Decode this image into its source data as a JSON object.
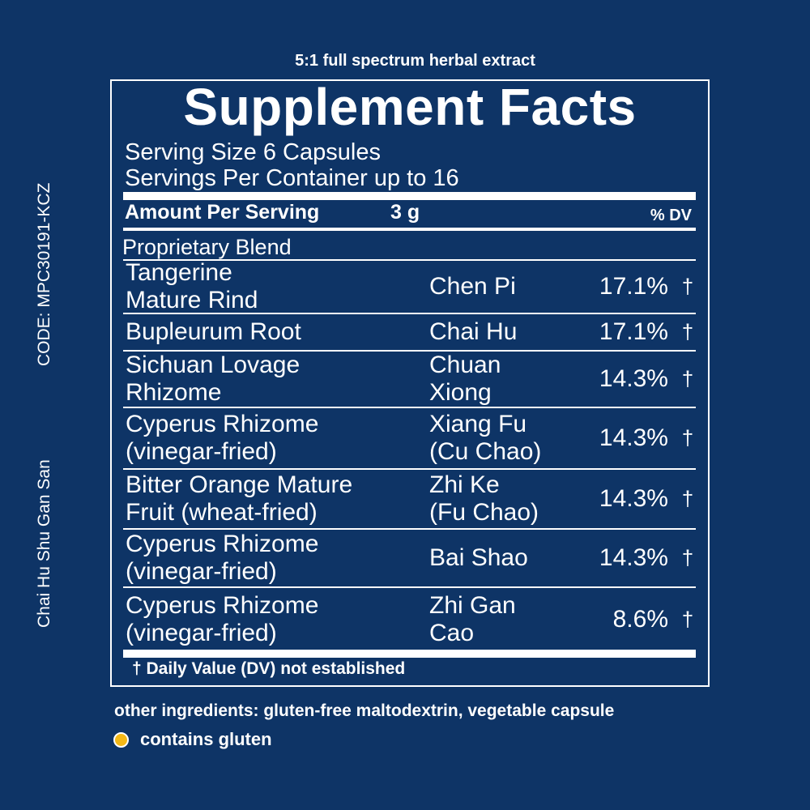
{
  "colors": {
    "background": "#0e3466",
    "text": "#ffffff",
    "gluten_dot": "#f3b817"
  },
  "side": {
    "code": "CODE: MPC30191-KCZ",
    "product_name": "Chai Hu Shu Gan San"
  },
  "extract_note": "5:1 full spectrum herbal extract",
  "facts": {
    "title": "Supplement Facts",
    "serving_size": "Serving Size 6 Capsules",
    "servings_per_container": "Servings Per Container up to 16",
    "amount_label": "Amount Per Serving",
    "amount_value": "3 g",
    "dv_label": "% DV",
    "blend_label": "Proprietary Blend",
    "ingredients": [
      {
        "name": "Tangerine\nMature Rind",
        "chinese": "Chen Pi",
        "percent": "17.1%",
        "mark": "†"
      },
      {
        "name": "Bupleurum Root",
        "chinese": "Chai Hu",
        "percent": "17.1%",
        "mark": "†"
      },
      {
        "name": "Sichuan Lovage\nRhizome",
        "chinese": "Chuan\nXiong",
        "percent": "14.3%",
        "mark": "†"
      },
      {
        "name": "Cyperus Rhizome\n(vinegar-fried)",
        "chinese": "Xiang Fu\n(Cu Chao)",
        "percent": "14.3%",
        "mark": "†"
      },
      {
        "name": "Bitter Orange Mature\nFruit (wheat-fried)",
        "chinese": "Zhi Ke\n(Fu Chao)",
        "percent": "14.3%",
        "mark": "†"
      },
      {
        "name": "Cyperus Rhizome\n(vinegar-fried)",
        "chinese": "Bai Shao",
        "percent": "14.3%",
        "mark": "†"
      },
      {
        "name": "Cyperus Rhizome\n(vinegar-fried)",
        "chinese": "Zhi Gan\nCao",
        "percent": "8.6%",
        "mark": "†"
      }
    ],
    "footnote": "† Daily Value (DV) not established"
  },
  "other_ingredients": "other ingredients: gluten-free maltodextrin, vegetable capsule",
  "gluten_note": "contains gluten"
}
